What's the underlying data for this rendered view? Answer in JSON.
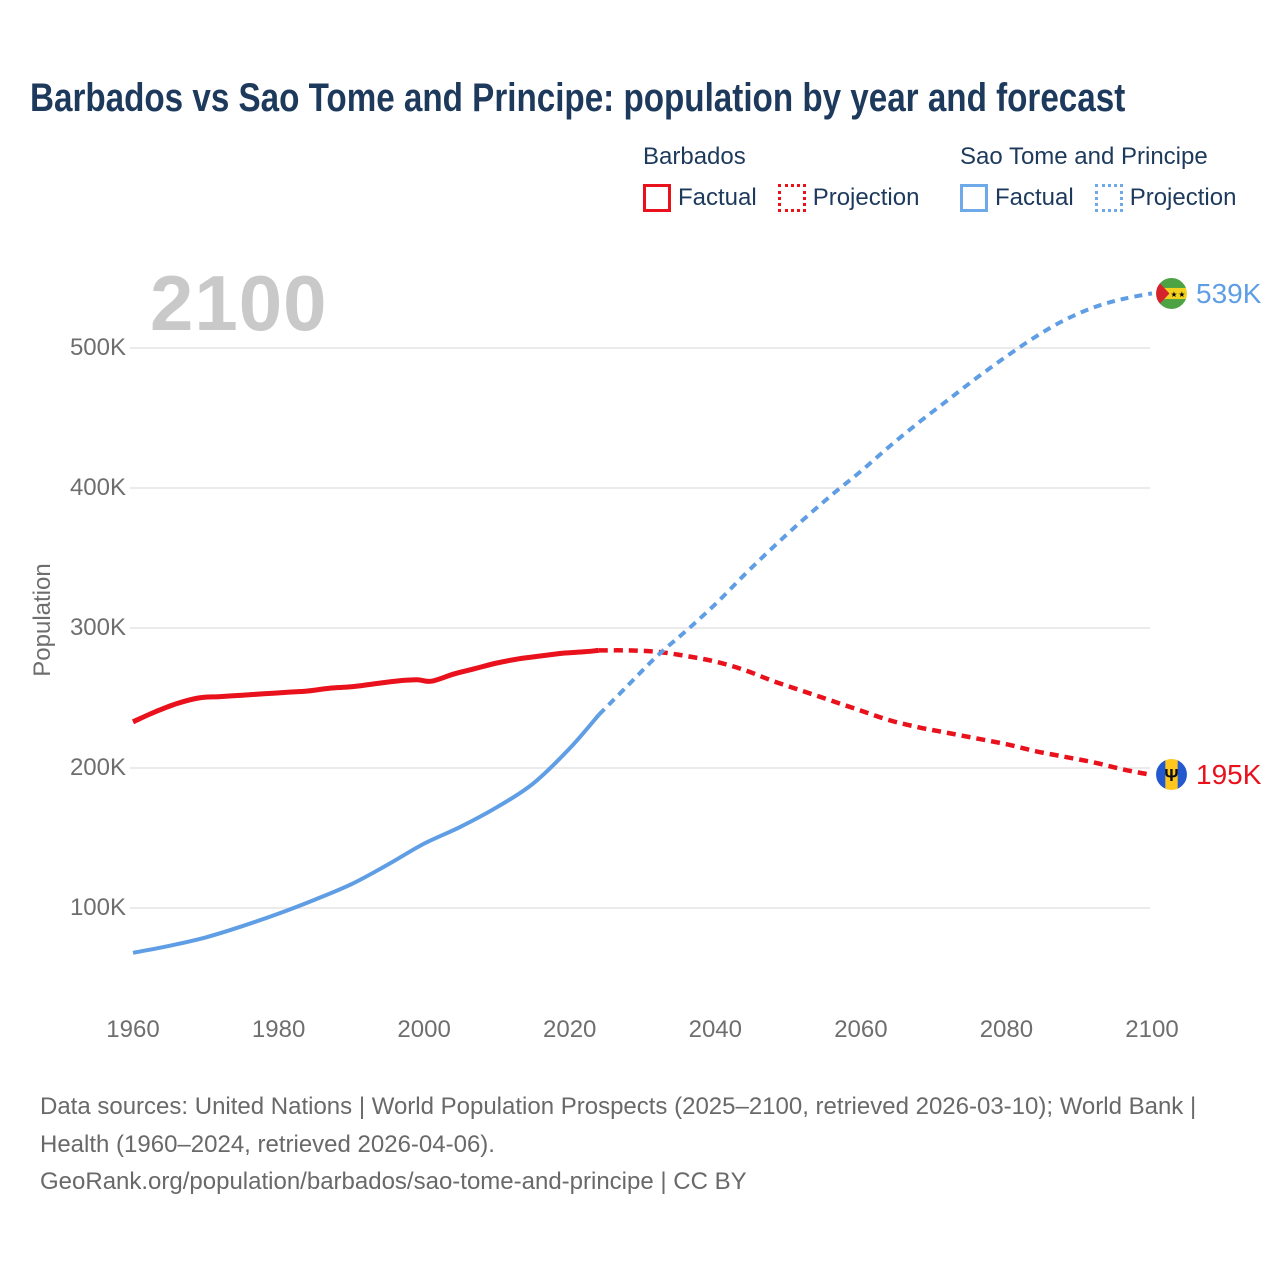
{
  "title": "Barbados vs Sao Tome and Principe: population by year and forecast",
  "watermark": "2100",
  "colors": {
    "title_text": "#1d3a5c",
    "axis_text": "#6e6e6e",
    "grid": "#ebebeb",
    "watermark": "#c9c9c9",
    "barbados_red": "#e8111c",
    "sao_tome_blue": "#5f9ee4"
  },
  "legend": {
    "groups": [
      {
        "title": "Barbados",
        "color": "#e8111c",
        "items": [
          {
            "label": "Factual",
            "style": "solid"
          },
          {
            "label": "Projection",
            "style": "dotted"
          }
        ]
      },
      {
        "title": "Sao Tome and Principe",
        "color": "#5f9ee4",
        "items": [
          {
            "label": "Factual",
            "style": "solid"
          },
          {
            "label": "Projection",
            "style": "dotted"
          }
        ]
      }
    ]
  },
  "chart_data": {
    "type": "line",
    "title": "Barbados vs Sao Tome and Principe: population by year and forecast",
    "xlabel": "",
    "ylabel": "Population",
    "x_axis": {
      "ticks": [
        1960,
        1980,
        2000,
        2020,
        2040,
        2060,
        2080,
        2100
      ],
      "tick_labels": [
        "1960",
        "1980",
        "2000",
        "2020",
        "2040",
        "2060",
        "2080",
        "2100"
      ],
      "range": [
        1960,
        2100
      ]
    },
    "y_axis": {
      "label": "Population",
      "ticks": [
        100,
        200,
        300,
        400,
        500
      ],
      "tick_labels": [
        "100K",
        "200K",
        "300K",
        "400K",
        "500K"
      ],
      "unit": "thousands",
      "range": [
        60,
        560
      ]
    },
    "grid": "horizontal",
    "legend_position": "top-right",
    "series": [
      {
        "name": "Barbados Factual",
        "color": "#e8111c",
        "dash": "solid",
        "width": 5,
        "points": [
          [
            1960,
            233
          ],
          [
            1963,
            240
          ],
          [
            1966,
            246
          ],
          [
            1969,
            250
          ],
          [
            1972,
            251
          ],
          [
            1975,
            252
          ],
          [
            1978,
            253
          ],
          [
            1981,
            254
          ],
          [
            1984,
            255
          ],
          [
            1987,
            257
          ],
          [
            1990,
            258
          ],
          [
            1993,
            260
          ],
          [
            1996,
            262
          ],
          [
            1999,
            263
          ],
          [
            2001,
            262
          ],
          [
            2004,
            267
          ],
          [
            2007,
            271
          ],
          [
            2010,
            275
          ],
          [
            2013,
            278
          ],
          [
            2016,
            280
          ],
          [
            2019,
            282
          ],
          [
            2022,
            283
          ],
          [
            2024,
            284
          ]
        ]
      },
      {
        "name": "Barbados Projection",
        "color": "#e8111c",
        "dash": "dotted",
        "width": 4.5,
        "points": [
          [
            2024,
            284
          ],
          [
            2028,
            284
          ],
          [
            2032,
            283
          ],
          [
            2036,
            280
          ],
          [
            2040,
            276
          ],
          [
            2044,
            270
          ],
          [
            2048,
            262
          ],
          [
            2052,
            255
          ],
          [
            2056,
            248
          ],
          [
            2060,
            241
          ],
          [
            2064,
            234
          ],
          [
            2068,
            229
          ],
          [
            2072,
            225
          ],
          [
            2076,
            221
          ],
          [
            2080,
            217
          ],
          [
            2084,
            212
          ],
          [
            2088,
            208
          ],
          [
            2092,
            204
          ],
          [
            2096,
            199
          ],
          [
            2100,
            195
          ]
        ]
      },
      {
        "name": "Sao Tome and Principe Factual",
        "color": "#5f9ee4",
        "dash": "solid",
        "width": 4,
        "points": [
          [
            1960,
            68
          ],
          [
            1965,
            73
          ],
          [
            1970,
            79
          ],
          [
            1975,
            87
          ],
          [
            1980,
            96
          ],
          [
            1985,
            106
          ],
          [
            1990,
            117
          ],
          [
            1995,
            131
          ],
          [
            2000,
            146
          ],
          [
            2005,
            158
          ],
          [
            2010,
            172
          ],
          [
            2015,
            189
          ],
          [
            2020,
            214
          ],
          [
            2024,
            238
          ]
        ]
      },
      {
        "name": "Sao Tome and Principe Projection",
        "color": "#5f9ee4",
        "dash": "dotted",
        "width": 4,
        "points": [
          [
            2024,
            238
          ],
          [
            2028,
            259
          ],
          [
            2032,
            280
          ],
          [
            2036,
            298
          ],
          [
            2040,
            317
          ],
          [
            2044,
            338
          ],
          [
            2048,
            358
          ],
          [
            2052,
            377
          ],
          [
            2056,
            395
          ],
          [
            2060,
            412
          ],
          [
            2064,
            430
          ],
          [
            2068,
            447
          ],
          [
            2072,
            463
          ],
          [
            2076,
            479
          ],
          [
            2080,
            494
          ],
          [
            2084,
            508
          ],
          [
            2088,
            520
          ],
          [
            2092,
            529
          ],
          [
            2096,
            535
          ],
          [
            2100,
            539
          ]
        ]
      }
    ],
    "end_labels": [
      {
        "series": "Sao Tome and Principe",
        "text": "539K",
        "value_thousands": 539,
        "year": 2100,
        "flag": "sao-tome-and-principe"
      },
      {
        "series": "Barbados",
        "text": "195K",
        "value_thousands": 195,
        "year": 2100,
        "flag": "barbados"
      }
    ]
  },
  "footer": {
    "lines": [
      "Data sources: United Nations | World Population Prospects (2025–2100, retrieved 2026-03-10); World Bank | Health (1960–2024, retrieved 2026-04-06).",
      "GeoRank.org/population/barbados/sao-tome-and-principe | CC BY"
    ]
  }
}
